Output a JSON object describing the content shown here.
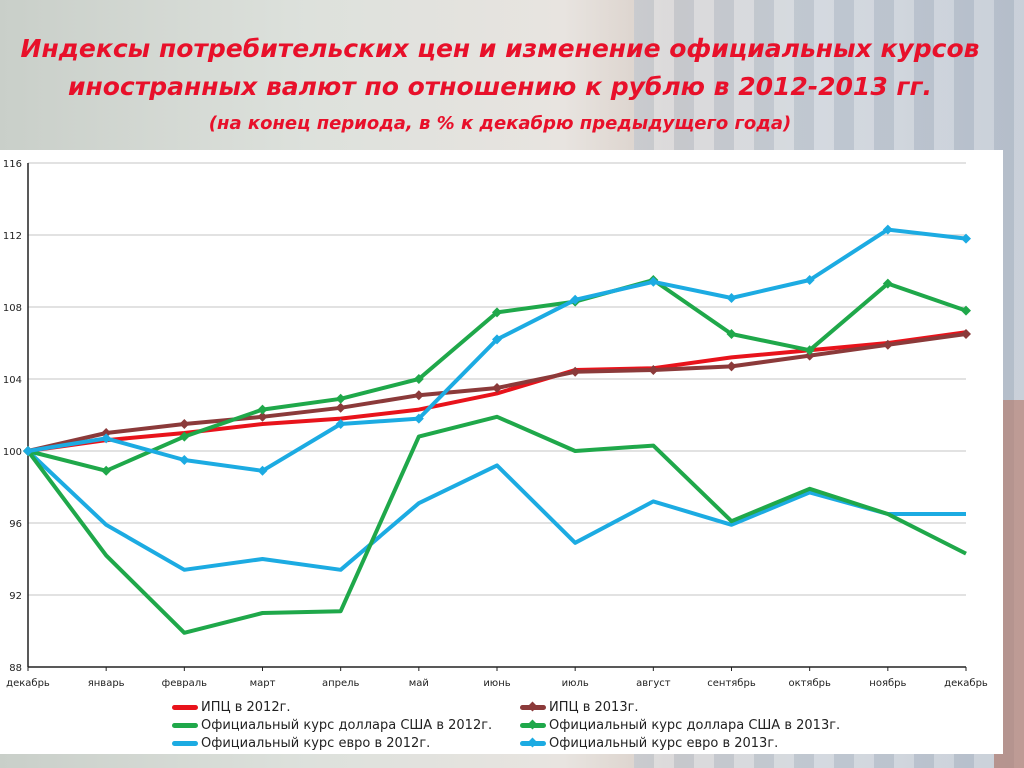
{
  "title": {
    "line1": "Индексы потребительских цен и изменение официальных курсов",
    "line2": "иностранных валют по отношению к рублю в 2012-2013 гг.",
    "line3": "(на конец периода, в % к декабрю предыдущего года)"
  },
  "chart_data": {
    "type": "line",
    "categories": [
      "декабрь",
      "январь",
      "февраль",
      "март",
      "апрель",
      "май",
      "июнь",
      "июль",
      "август",
      "сентябрь",
      "октябрь",
      "ноябрь",
      "декабрь"
    ],
    "ylim": [
      88,
      116
    ],
    "yticks": [
      88,
      92,
      96,
      100,
      104,
      108,
      112,
      116
    ],
    "grid": true,
    "legend_position": "bottom",
    "series": [
      {
        "name": "ИПЦ в 2012г.",
        "color": "#e8131b",
        "markers": false,
        "values": [
          100,
          100.6,
          101.0,
          101.5,
          101.8,
          102.3,
          103.2,
          104.5,
          104.6,
          105.2,
          105.6,
          106.0,
          106.6
        ]
      },
      {
        "name": "ИПЦ в 2013г.",
        "color": "#8b3a3a",
        "markers": true,
        "values": [
          100,
          101.0,
          101.5,
          101.9,
          102.4,
          103.1,
          103.5,
          104.4,
          104.5,
          104.7,
          105.3,
          105.9,
          106.5
        ]
      },
      {
        "name": "Официальный курс доллара США в 2012г.",
        "color": "#1fa84a",
        "markers": false,
        "values": [
          100,
          94.2,
          89.9,
          91.0,
          91.1,
          100.8,
          101.9,
          100.0,
          100.3,
          96.1,
          97.9,
          96.5,
          94.3
        ]
      },
      {
        "name": "Официальный курс доллара США в 2013г.",
        "color": "#1fa84a",
        "markers": true,
        "values": [
          100,
          98.9,
          100.8,
          102.3,
          102.9,
          104.0,
          107.7,
          108.3,
          109.5,
          106.5,
          105.6,
          109.3,
          107.8
        ]
      },
      {
        "name": "Официальный курс евро в 2012г.",
        "color": "#1cabe2",
        "markers": false,
        "values": [
          100,
          95.9,
          93.4,
          94.0,
          93.4,
          97.1,
          99.2,
          94.9,
          97.2,
          95.9,
          97.7,
          96.5,
          96.5
        ]
      },
      {
        "name": "Официальный курс евро в 2013г.",
        "color": "#1cabe2",
        "markers": true,
        "values": [
          100,
          100.7,
          99.5,
          98.9,
          101.5,
          101.8,
          106.2,
          108.4,
          109.4,
          108.5,
          109.5,
          112.3,
          111.8
        ]
      }
    ]
  }
}
